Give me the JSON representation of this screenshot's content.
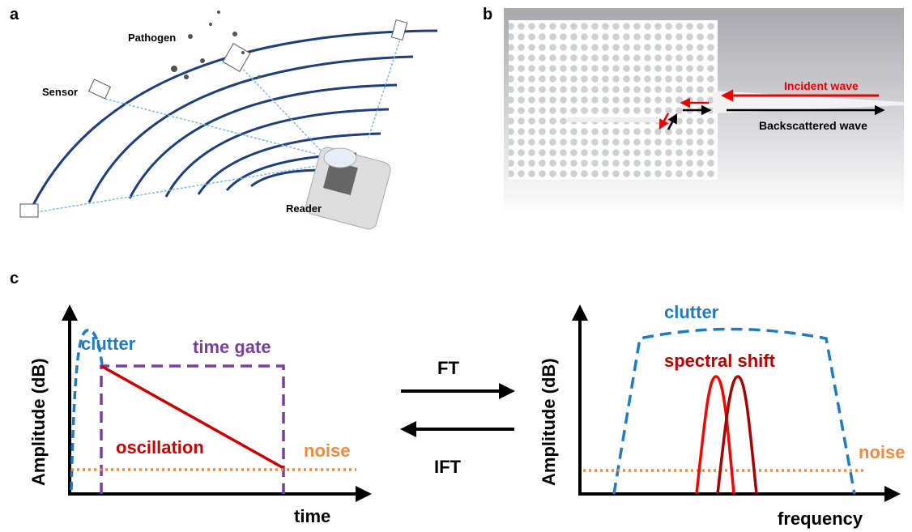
{
  "panel_a": {
    "label": "a",
    "pathogen": "Pathogen",
    "sensor": "Sensor",
    "reader": "Reader"
  },
  "panel_b": {
    "label": "b",
    "incident": "Incident wave",
    "backscattered": "Backscattered wave"
  },
  "panel_c": {
    "label": "c",
    "time_domain": {
      "clutter": "clutter",
      "time_gate": "time gate",
      "oscillation": "oscillation",
      "noise": "noise",
      "y_axis": "Amplitude (dB)",
      "x_axis": "time"
    },
    "transform": {
      "forward": "FT",
      "inverse": "IFT"
    },
    "frequency_domain": {
      "clutter": "clutter",
      "spectral_shift": "spectral shift",
      "noise": "noise",
      "y_axis": "Amplitude (dB)",
      "x_axis": "frequency"
    }
  }
}
